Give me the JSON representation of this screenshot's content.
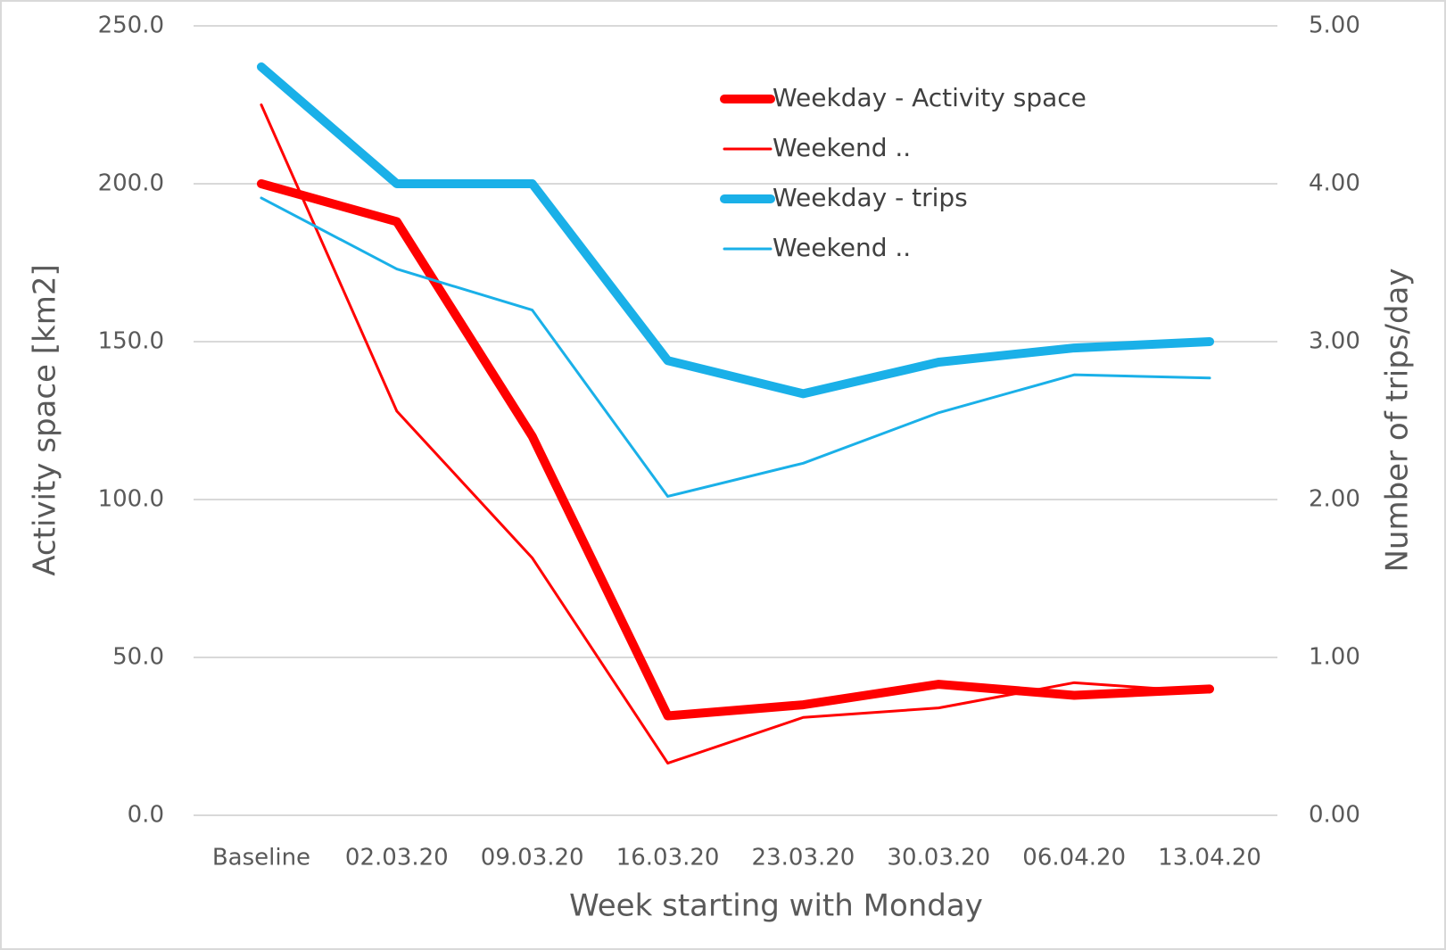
{
  "chart_data": {
    "type": "line",
    "x_label": "Week starting with Monday",
    "y_label": "Activity space [km2]",
    "y2_label": "Number of trips/day",
    "categories": [
      "Baseline",
      "02.03.20",
      "09.03.20",
      "16.03.20",
      "23.03.20",
      "30.03.20",
      "06.04.20",
      "13.04.20"
    ],
    "ylim": [
      0,
      250
    ],
    "yticks": [
      {
        "value": 0,
        "label": "0.0"
      },
      {
        "value": 50,
        "label": "50.0"
      },
      {
        "value": 100,
        "label": "100.0"
      },
      {
        "value": 150,
        "label": "150.0"
      },
      {
        "value": 200,
        "label": "200.0"
      },
      {
        "value": 250,
        "label": "250.0"
      }
    ],
    "y2lim": [
      0,
      5
    ],
    "y2ticks": [
      {
        "value": 0,
        "label": "0.00"
      },
      {
        "value": 1,
        "label": "1.00"
      },
      {
        "value": 2,
        "label": "2.00"
      },
      {
        "value": 3,
        "label": "3.00"
      },
      {
        "value": 4,
        "label": "4.00"
      },
      {
        "value": 5,
        "label": "5.00"
      }
    ],
    "grid": true,
    "legend": "top-right",
    "series": [
      {
        "name": "Weekday - Activity space",
        "color": "#ff0000",
        "line_width": 10,
        "values": [
          200,
          188,
          120,
          31.5,
          35,
          41.5,
          38,
          40
        ]
      },
      {
        "name": "Weekend ..",
        "color": "#ff0000",
        "line_width": 3,
        "values": [
          225,
          128,
          81.5,
          16.5,
          31,
          34,
          42,
          39
        ]
      },
      {
        "name": "Weekday - trips",
        "color": "#1ab0e8",
        "line_width": 10,
        "axis": "y2",
        "values": [
          4.74,
          4.0,
          4.0,
          2.88,
          2.67,
          2.87,
          2.96,
          3.0
        ]
      },
      {
        "name": "Weekend ..",
        "color": "#1ab0e8",
        "line_width": 3,
        "axis": "y2",
        "values": [
          3.91,
          3.46,
          3.2,
          2.02,
          2.23,
          2.55,
          2.79,
          2.77
        ]
      }
    ]
  }
}
